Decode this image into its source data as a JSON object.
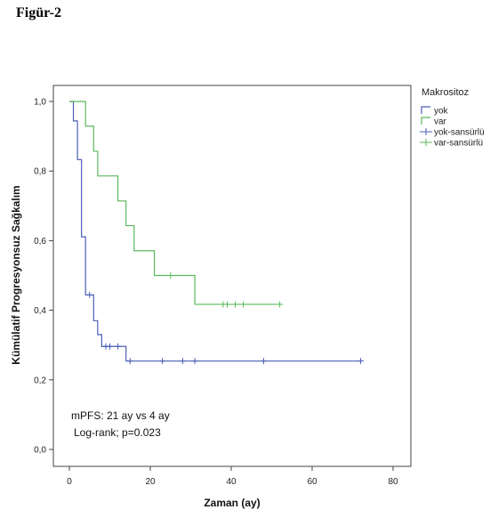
{
  "figure_label": "Figür-2",
  "colors": {
    "yok": "#4a5fb4",
    "var": "#5cb85c",
    "axis": "#444444"
  },
  "chart_data": {
    "type": "line",
    "subtype": "kaplan-meier step",
    "xlabel": "Zaman (ay)",
    "ylabel": "Kümülatif Progresyonsuz Sağkalım",
    "xlim": [
      0,
      80
    ],
    "ylim": [
      0,
      1
    ],
    "x_ticks": [
      "0",
      "20",
      "40",
      "60",
      "80"
    ],
    "y_ticks": [
      "0,0",
      "0,2",
      "0,4",
      "0,6",
      "0,8",
      "1,0"
    ],
    "grid": false,
    "legend": {
      "title": "Makrositoz",
      "placement": "right",
      "entries": [
        "yok",
        "var",
        "yok-sansürlü",
        "var-sansürlü"
      ]
    },
    "annotations": [
      "mPFS: 21 ay vs 4 ay",
      "Log-rank; p=0.023"
    ],
    "series": [
      {
        "name": "yok",
        "color": "#4a5fb4",
        "step_x": [
          0,
          1,
          2,
          3,
          4,
          5,
          6,
          7,
          8,
          14,
          72
        ],
        "step_y": [
          1.0,
          0.944,
          0.833,
          0.611,
          0.444,
          0.444,
          0.37,
          0.33,
          0.296,
          0.254,
          0.254
        ],
        "censored": [
          {
            "x": 5,
            "y": 0.444
          },
          {
            "x": 9,
            "y": 0.296
          },
          {
            "x": 10,
            "y": 0.296
          },
          {
            "x": 12,
            "y": 0.296
          },
          {
            "x": 15,
            "y": 0.254
          },
          {
            "x": 23,
            "y": 0.254
          },
          {
            "x": 28,
            "y": 0.254
          },
          {
            "x": 31,
            "y": 0.254
          },
          {
            "x": 48,
            "y": 0.254
          },
          {
            "x": 72,
            "y": 0.254
          }
        ]
      },
      {
        "name": "var",
        "color": "#5cb85c",
        "step_x": [
          0,
          4,
          6,
          7,
          12,
          14,
          16,
          21,
          31,
          52
        ],
        "step_y": [
          1.0,
          0.929,
          0.857,
          0.786,
          0.714,
          0.643,
          0.571,
          0.5,
          0.417,
          0.417
        ],
        "censored": [
          {
            "x": 25,
            "y": 0.5
          },
          {
            "x": 38,
            "y": 0.417
          },
          {
            "x": 39,
            "y": 0.417
          },
          {
            "x": 41,
            "y": 0.417
          },
          {
            "x": 43,
            "y": 0.417
          },
          {
            "x": 52,
            "y": 0.417
          }
        ]
      }
    ]
  }
}
